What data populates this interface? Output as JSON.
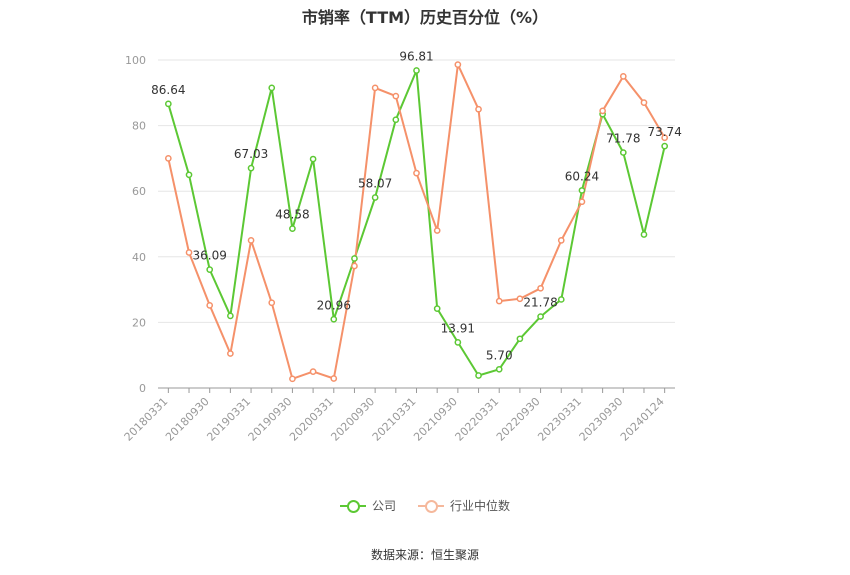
{
  "title": "市销率（TTM）历史百分位（%）",
  "source": "数据来源：恒生聚源",
  "chart_data": {
    "type": "line",
    "title": "市销率（TTM）历史百分位（%）",
    "ylim": [
      0,
      100
    ],
    "yticks": [
      0,
      20,
      40,
      60,
      80,
      100
    ],
    "grid": true,
    "legend_position": "bottom-center",
    "x": [
      "20180331",
      "20180630",
      "20180930",
      "20181231",
      "20190331",
      "20190630",
      "20190930",
      "20191231",
      "20200331",
      "20200630",
      "20200930",
      "20201231",
      "20210331",
      "20210630",
      "20210930",
      "20211231",
      "20220331",
      "20220630",
      "20220930",
      "20221231",
      "20230331",
      "20230630",
      "20230930",
      "20231231",
      "20240124"
    ],
    "xtick_labels": [
      "20180331",
      "20180930",
      "20190331",
      "20190930",
      "20200331",
      "20200930",
      "20210331",
      "20210930",
      "20220331",
      "20220930",
      "20230331",
      "20230930",
      "20240124"
    ],
    "series": [
      {
        "name": "公司",
        "color": "#5cc834",
        "values": [
          86.64,
          65.0,
          36.09,
          22.0,
          67.03,
          91.5,
          48.58,
          69.8,
          20.96,
          39.5,
          58.07,
          81.8,
          96.81,
          24.2,
          13.91,
          3.8,
          5.7,
          15.0,
          21.78,
          27.0,
          60.24,
          83.5,
          71.78,
          46.8,
          73.74
        ],
        "labels": {
          "0": "86.64",
          "2": "36.09",
          "4": "67.03",
          "6": "48.58",
          "8": "20.96",
          "10": "58.07",
          "12": "96.81",
          "14": "13.91",
          "16": "5.70",
          "18": "21.78",
          "20": "60.24",
          "22": "71.78",
          "24": "73.74"
        }
      },
      {
        "name": "行业中位数",
        "color": "#f5916a",
        "values": [
          70.0,
          41.3,
          25.2,
          10.5,
          45.0,
          26.0,
          2.8,
          5.0,
          2.9,
          37.2,
          91.5,
          89.0,
          65.5,
          48.0,
          98.6,
          85.0,
          26.5,
          27.2,
          30.4,
          45.0,
          56.8,
          84.5,
          95.0,
          87.0,
          76.3
        ]
      }
    ]
  }
}
